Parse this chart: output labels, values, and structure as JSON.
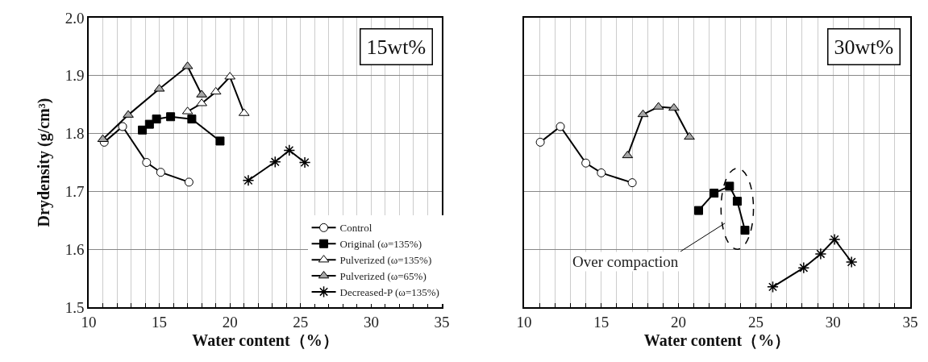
{
  "chart_data": [
    {
      "type": "line",
      "xlabel": "Water content（%）",
      "ylabel": "Drydensity (g/cm³)",
      "annotations": [
        "15wt%"
      ],
      "xlim": [
        10,
        35
      ],
      "ylim": [
        1.5,
        2.0
      ],
      "xticks": [
        10,
        {
          "value": 11,
          "label": null
        },
        {
          "value": 12,
          "label": null
        },
        {
          "value": 13,
          "label": null
        },
        {
          "value": 14,
          "label": null
        },
        15,
        {
          "value": 16,
          "label": null
        },
        {
          "value": 17,
          "label": null
        },
        {
          "value": 18,
          "label": null
        },
        {
          "value": 19,
          "label": null
        },
        20,
        {
          "value": 21,
          "label": null
        },
        {
          "value": 22,
          "label": null
        },
        {
          "value": 23,
          "label": null
        },
        {
          "value": 24,
          "label": null
        },
        25,
        {
          "value": 26,
          "label": null
        },
        {
          "value": 27,
          "label": null
        },
        {
          "value": 28,
          "label": null
        },
        {
          "value": 29,
          "label": null
        },
        30,
        {
          "value": 31,
          "label": null
        },
        {
          "value": 32,
          "label": null
        },
        {
          "value": 33,
          "label": null
        },
        {
          "value": 34,
          "label": null
        },
        35
      ],
      "yticks": [
        1.5,
        1.6,
        1.7,
        1.8,
        1.9,
        {
          "value": 2.0,
          "label": "2.0"
        }
      ],
      "grid": true,
      "legend": "bottom right",
      "line_style": "solid",
      "series": [
        {
          "name": "Control",
          "color": "#ffffff",
          "marker": "circle",
          "x": [
            11.1,
            12.4,
            14.1,
            15.1,
            17.1
          ],
          "values": [
            1.785,
            1.812,
            1.75,
            1.733,
            1.716
          ]
        },
        {
          "name": "Original (ω=135%)",
          "color": "#000000",
          "marker": "square",
          "x": [
            13.8,
            14.3,
            14.8,
            15.8,
            17.3,
            19.3
          ],
          "values": [
            1.806,
            1.816,
            1.825,
            1.829,
            1.825,
            1.787
          ]
        },
        {
          "name": "Pulverized (ω=135%)",
          "color": "#ffffff",
          "marker": "triangle",
          "x": [
            17.0,
            18.0,
            19.0,
            20.0,
            21.0
          ],
          "values": [
            1.838,
            1.852,
            1.872,
            1.898,
            1.835
          ]
        },
        {
          "name": "Pulverized (ω=65%)",
          "color": "#a6a6a6",
          "marker": "triangle",
          "x": [
            11.0,
            12.8,
            15.0,
            17.0,
            18.0
          ],
          "values": [
            1.79,
            1.832,
            1.877,
            1.916,
            1.867
          ]
        },
        {
          "name": "Decreased-P (ω=135%)",
          "color": "#000000",
          "marker": "cross",
          "x": [
            21.3,
            23.2,
            24.2,
            25.3
          ],
          "values": [
            1.719,
            1.751,
            1.771,
            1.75
          ]
        }
      ]
    },
    {
      "type": "line",
      "xlabel": "Water content（%）",
      "annotations": [
        "30wt%",
        "Over compaction"
      ],
      "xlim": [
        10,
        35
      ],
      "ylim": [
        1.5,
        2.0
      ],
      "tick_labels": "x",
      "xticks": [
        10,
        {
          "value": 11,
          "label": null
        },
        {
          "value": 12,
          "label": null
        },
        {
          "value": 13,
          "label": null
        },
        {
          "value": 14,
          "label": null
        },
        15,
        {
          "value": 16,
          "label": null
        },
        {
          "value": 17,
          "label": null
        },
        {
          "value": 18,
          "label": null
        },
        {
          "value": 19,
          "label": null
        },
        20,
        {
          "value": 21,
          "label": null
        },
        {
          "value": 22,
          "label": null
        },
        {
          "value": 23,
          "label": null
        },
        {
          "value": 24,
          "label": null
        },
        25,
        {
          "value": 26,
          "label": null
        },
        {
          "value": 27,
          "label": null
        },
        {
          "value": 28,
          "label": null
        },
        {
          "value": 29,
          "label": null
        },
        30,
        {
          "value": 31,
          "label": null
        },
        {
          "value": 32,
          "label": null
        },
        {
          "value": 33,
          "label": null
        },
        {
          "value": 34,
          "label": null
        },
        35
      ],
      "yticks": [
        {
          "value": 1.5,
          "label": null
        },
        {
          "value": 1.6,
          "label": null
        },
        {
          "value": 1.7,
          "label": null
        },
        {
          "value": 1.8,
          "label": null
        },
        {
          "value": 1.9,
          "label": null
        },
        {
          "value": 2.0,
          "label": null
        }
      ],
      "grid": true,
      "line_style": "solid",
      "series": [
        {
          "color": "#ffffff",
          "marker": "circle",
          "x": [
            11.05,
            12.35,
            14.0,
            15.0,
            17.0
          ],
          "values": [
            1.785,
            1.812,
            1.749,
            1.732,
            1.715
          ]
        },
        {
          "color": "#a6a6a6",
          "marker": "triangle",
          "x": [
            16.7,
            17.7,
            18.7,
            19.7,
            20.7
          ],
          "values": [
            1.762,
            1.833,
            1.846,
            1.844,
            1.794
          ]
        },
        {
          "color": "#000000",
          "marker": "square",
          "x": [
            21.3,
            22.3,
            23.3,
            23.8,
            24.3
          ],
          "values": [
            1.667,
            1.697,
            1.709,
            1.683,
            1.633
          ]
        },
        {
          "color": "#000000",
          "marker": "cross",
          "x": [
            26.1,
            28.1,
            29.2,
            30.1,
            31.2
          ],
          "values": [
            1.535,
            1.568,
            1.592,
            1.617,
            1.578
          ]
        }
      ]
    }
  ]
}
